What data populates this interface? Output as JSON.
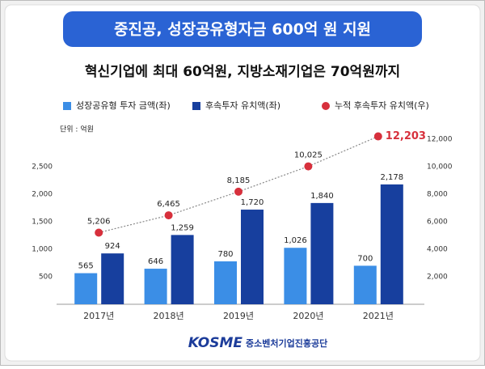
{
  "chart_data": {
    "type": "bar-line",
    "title": "중진공, 성장공유형자금 600억 원 지원",
    "subtitle": "혁신기업에 최대 60억원, 지방소재기업은 70억원까지",
    "unit": "단위 : 억원",
    "categories": [
      "2017년",
      "2018년",
      "2019년",
      "2020년",
      "2021년"
    ],
    "series": [
      {
        "name": "성장공유형 투자 금액(좌)",
        "type": "bar",
        "color": "#3b8ee6",
        "values": [
          565,
          646,
          780,
          1026,
          700
        ],
        "value_labels": [
          "565",
          "646",
          "780",
          "1,026",
          "700"
        ]
      },
      {
        "name": "후속투자 유치액(좌)",
        "type": "bar",
        "color": "#173f9e",
        "values": [
          924,
          1259,
          1720,
          1840,
          2178
        ],
        "value_labels": [
          "924",
          "1,259",
          "1,720",
          "1,840",
          "2,178"
        ]
      },
      {
        "name": "누적 후속투자 유치액(우)",
        "type": "line",
        "axis": "y2",
        "color": "#d7303c",
        "values": [
          5206,
          6465,
          8185,
          10025,
          12203
        ],
        "value_labels": [
          "5,206",
          "6,465",
          "8,185",
          "10,025",
          "12,203"
        ]
      }
    ],
    "ylim": [
      0,
      3000
    ],
    "yticks": [
      500,
      {
        "value": 1000,
        "label": "1,000"
      },
      {
        "value": 1500,
        "label": "1,500"
      },
      {
        "value": 2000,
        "label": "2,000"
      },
      {
        "value": 2500,
        "label": "2,500"
      }
    ],
    "y2lim": [
      0,
      12000
    ],
    "y2ticks": [
      {
        "value": 2000,
        "label": "2,000"
      },
      {
        "value": 4000,
        "label": "4,000"
      },
      {
        "value": 6000,
        "label": "6,000"
      },
      {
        "value": 8000,
        "label": "8,000"
      },
      {
        "value": 10000,
        "label": "10,000"
      },
      {
        "value": 12000,
        "label": "12,000"
      }
    ],
    "grid": false,
    "footer_logo": "KOSME",
    "footer_org": "중소벤처기업진흥공단"
  }
}
